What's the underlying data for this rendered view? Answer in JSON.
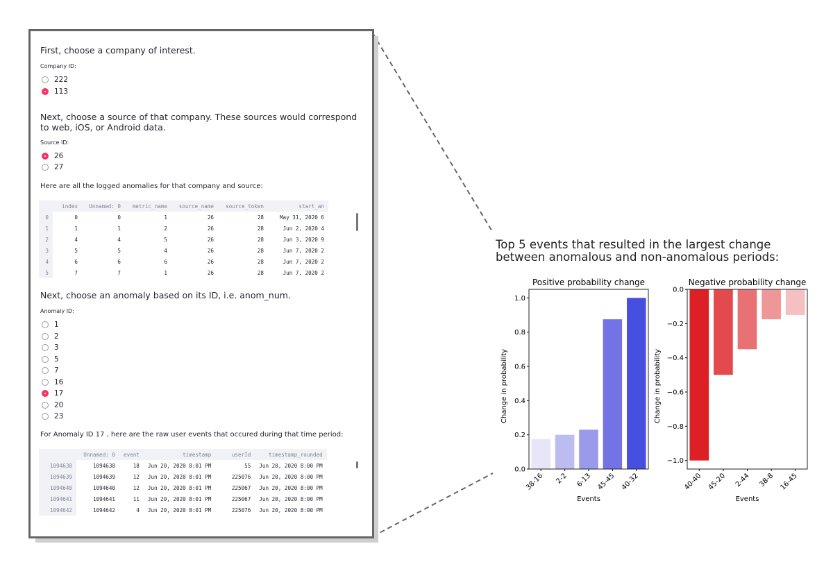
{
  "app": {
    "step1": "First, choose a company of interest.",
    "company_label": "Company ID:",
    "company_options": [
      {
        "label": "222",
        "selected": false
      },
      {
        "label": "113",
        "selected": true
      }
    ],
    "step2": "Next, choose a source of that company. These sources would correspond to web, iOS, or Android data.",
    "source_label": "Source ID:",
    "source_options": [
      {
        "label": "26",
        "selected": true
      },
      {
        "label": "27",
        "selected": false
      }
    ],
    "anomalies_text": "Here are all the logged anomalies for that company and source:",
    "anomalies_table": {
      "columns": [
        "",
        "index",
        "Unnamed: 0",
        "metric_name",
        "source_name",
        "source_token",
        "start_an"
      ],
      "rows": [
        [
          "0",
          "0",
          "0",
          "1",
          "26",
          "28",
          "May 31, 2020 6"
        ],
        [
          "1",
          "1",
          "1",
          "2",
          "26",
          "28",
          "Jun 2, 2020 4"
        ],
        [
          "2",
          "4",
          "4",
          "5",
          "26",
          "28",
          "Jun 3, 2020 9"
        ],
        [
          "3",
          "5",
          "5",
          "4",
          "26",
          "28",
          "Jun 7, 2020 2"
        ],
        [
          "4",
          "6",
          "6",
          "6",
          "26",
          "28",
          "Jun 7, 2020 2"
        ],
        [
          "5",
          "7",
          "7",
          "1",
          "26",
          "28",
          "Jun 7, 2020 2"
        ]
      ]
    },
    "step3": "Next, choose an anomaly based on its ID, i.e. anom_num.",
    "anomaly_label": "Anomaly ID:",
    "anomaly_options": [
      {
        "label": "1",
        "selected": false
      },
      {
        "label": "2",
        "selected": false
      },
      {
        "label": "3",
        "selected": false
      },
      {
        "label": "5",
        "selected": false
      },
      {
        "label": "7",
        "selected": false
      },
      {
        "label": "16",
        "selected": false
      },
      {
        "label": "17",
        "selected": true
      },
      {
        "label": "20",
        "selected": false
      },
      {
        "label": "23",
        "selected": false
      }
    ],
    "events_text": "For Anomaly ID 17 , here are the raw user events that occured during that time period:",
    "events_table": {
      "columns": [
        "",
        "Unnamed: 0",
        "event",
        "timestamp",
        "userId",
        "timestamp_rounded"
      ],
      "rows": [
        [
          "1094638",
          "1094638",
          "18",
          "Jun 20, 2020 8:01 PM",
          "55",
          "Jun 20, 2020 8:00 PM"
        ],
        [
          "1094639",
          "1094639",
          "12",
          "Jun 20, 2020 8:01 PM",
          "225076",
          "Jun 20, 2020 8:00 PM"
        ],
        [
          "1094640",
          "1094640",
          "12",
          "Jun 20, 2020 8:01 PM",
          "225067",
          "Jun 20, 2020 8:00 PM"
        ],
        [
          "1094641",
          "1094641",
          "11",
          "Jun 20, 2020 8:01 PM",
          "225067",
          "Jun 20, 2020 8:00 PM"
        ],
        [
          "1094642",
          "1094642",
          "4",
          "Jun 20, 2020 8:01 PM",
          "225076",
          "Jun 20, 2020 8:00 PM"
        ]
      ]
    }
  },
  "figure_title": "Top 5 events that resulted in the largest change between anomalous and non-anomalous periods:",
  "chart_data": [
    {
      "type": "bar",
      "title": "Positive probability change",
      "xlabel": "Events",
      "ylabel": "Change in probability",
      "categories": [
        "38-16",
        "2-2",
        "6-13",
        "45-45",
        "40-32"
      ],
      "values": [
        0.175,
        0.2,
        0.23,
        0.875,
        1.0
      ],
      "ylim": [
        0,
        1.05
      ],
      "yticks": [
        "0.0",
        "0.2",
        "0.4",
        "0.6",
        "0.8",
        "1.0"
      ],
      "colors": [
        "#e6e6f8",
        "#bcbcf0",
        "#9a9aea",
        "#7373e6",
        "#474fe0"
      ]
    },
    {
      "type": "bar",
      "title": "Negative probability change",
      "xlabel": "Events",
      "ylabel": "Change in probability",
      "categories": [
        "40-40",
        "45-20",
        "2-44",
        "38-8",
        "16-45"
      ],
      "values": [
        -1.0,
        -0.5,
        -0.35,
        -0.175,
        -0.15
      ],
      "ylim": [
        -1.05,
        0
      ],
      "yticks": [
        "−1.0",
        "−0.8",
        "−0.6",
        "−0.4",
        "−0.2",
        "0.0"
      ],
      "colors": [
        "#dd2026",
        "#e24a4e",
        "#e87173",
        "#ee9799",
        "#f4c0c1"
      ]
    }
  ]
}
